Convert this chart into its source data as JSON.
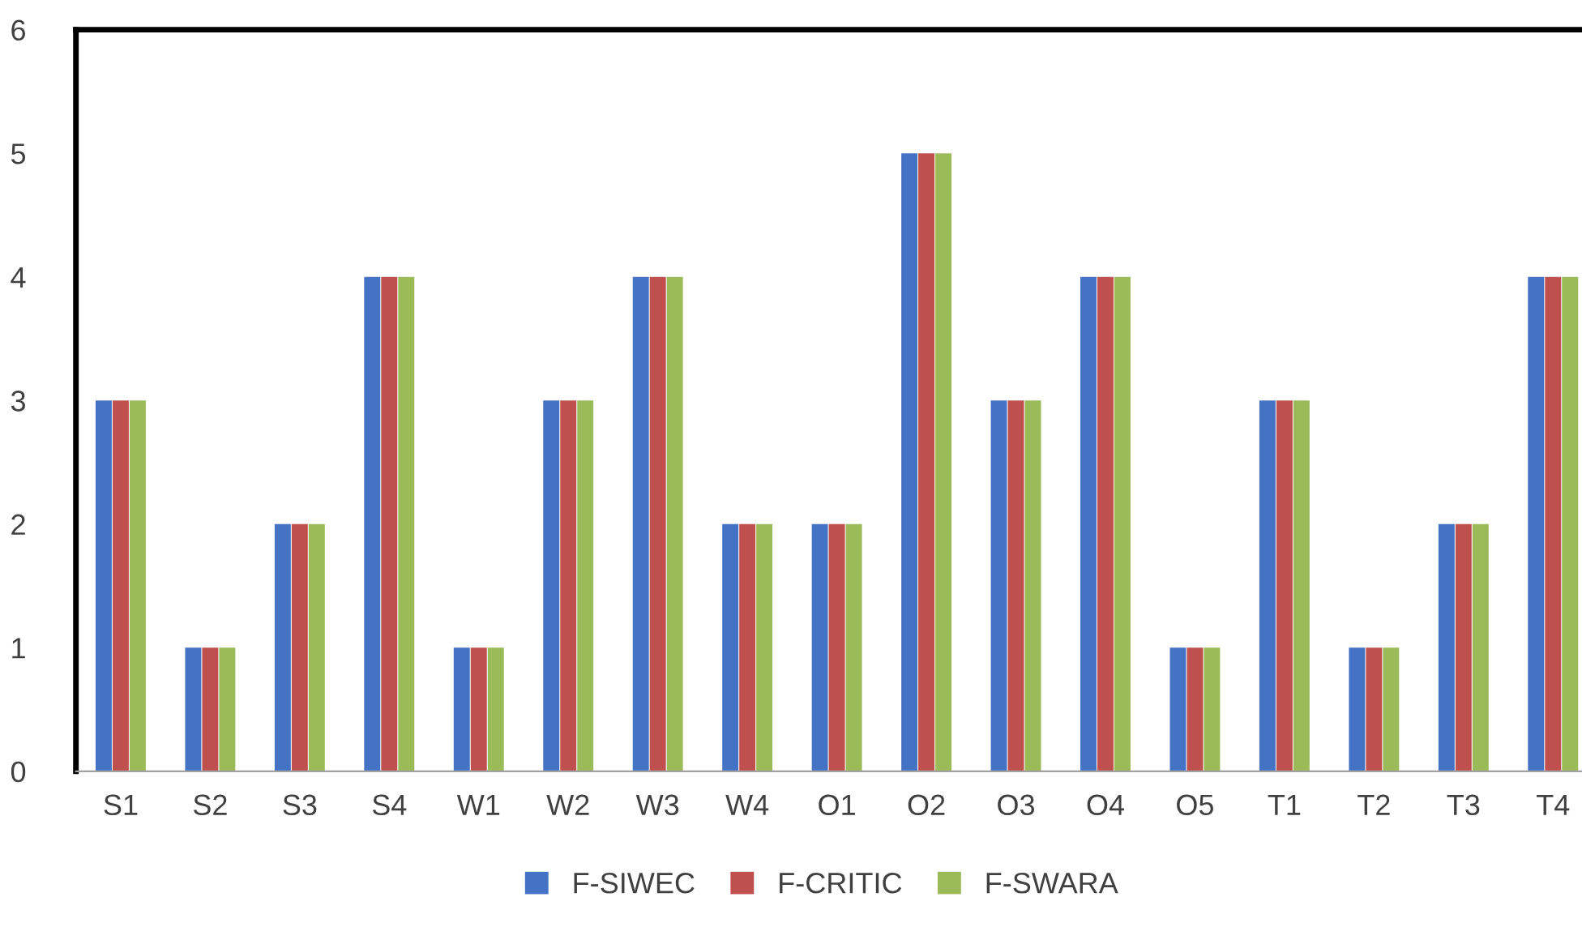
{
  "chart_data": {
    "type": "bar",
    "categories": [
      "S1",
      "S2",
      "S3",
      "S4",
      "W1",
      "W2",
      "W3",
      "W4",
      "O1",
      "O2",
      "O3",
      "O4",
      "O5",
      "T1",
      "T2",
      "T3",
      "T4"
    ],
    "series": [
      {
        "name": "F-SIWEC",
        "color": "#4472c4",
        "values": [
          3,
          1,
          2,
          4,
          1,
          3,
          4,
          2,
          2,
          5,
          3,
          4,
          1,
          3,
          1,
          2,
          4
        ]
      },
      {
        "name": "F-CRITIC",
        "color": "#c0504d",
        "values": [
          3,
          1,
          2,
          4,
          1,
          3,
          4,
          2,
          2,
          5,
          3,
          4,
          1,
          3,
          1,
          2,
          4
        ]
      },
      {
        "name": "F-SWARA",
        "color": "#9bbb59",
        "values": [
          3,
          1,
          2,
          4,
          1,
          3,
          4,
          2,
          2,
          5,
          3,
          4,
          1,
          3,
          1,
          2,
          4
        ]
      }
    ],
    "ylim": [
      0,
      6
    ],
    "yticks": [
      0,
      1,
      2,
      3,
      4,
      5,
      6
    ],
    "grid": false,
    "legend": "bottom"
  }
}
